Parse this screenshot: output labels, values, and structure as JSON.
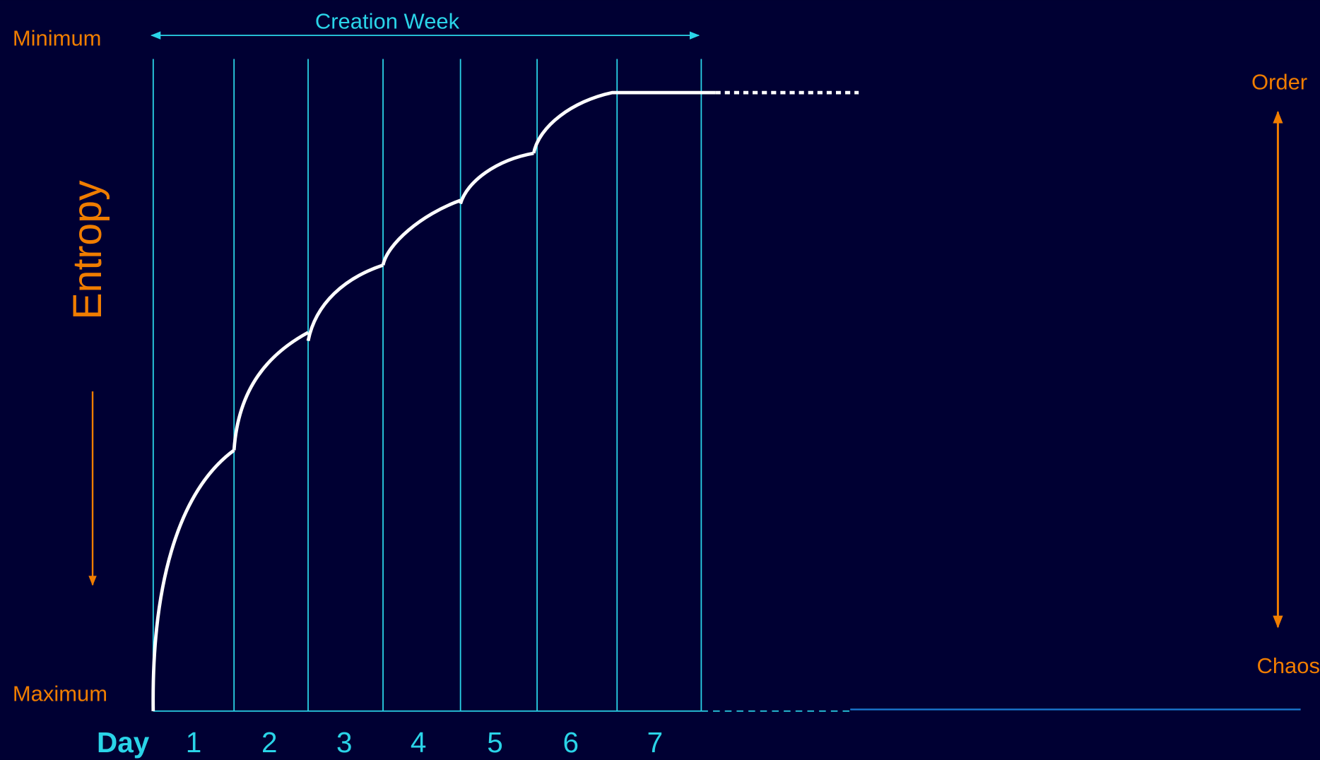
{
  "header": {
    "title": "Creation Week"
  },
  "entropy_axis": {
    "top": "Minimum",
    "bottom": "Maximum",
    "label": "Entropy"
  },
  "order_scale": {
    "top": "Order",
    "bottom": "Chaos"
  },
  "days": {
    "label": "Day",
    "numbers": [
      "1",
      "2",
      "3",
      "4",
      "5",
      "6",
      "7"
    ]
  }
}
